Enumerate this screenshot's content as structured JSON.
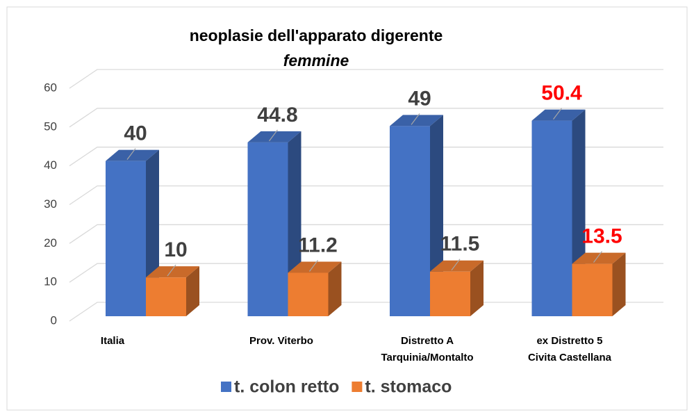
{
  "chart_data": {
    "type": "bar3d",
    "title": "neoplasie dell'apparato digerente",
    "subtitle": "femmine",
    "categories": [
      [
        "Italia"
      ],
      [
        "Prov. Viterbo"
      ],
      [
        "Distretto A",
        "Tarquinia/Montalto"
      ],
      [
        "ex Distretto 5",
        "Civita Castellana"
      ]
    ],
    "series": [
      {
        "name": "t. colon retto",
        "color": "#4472c4",
        "values": [
          40,
          44.8,
          49,
          50.4
        ]
      },
      {
        "name": "t. stomaco",
        "color": "#ed7d31",
        "values": [
          10,
          11.2,
          11.5,
          13.5
        ]
      }
    ],
    "label_colors": [
      "#404040",
      "#404040",
      "#404040",
      "#ff0000"
    ],
    "ylim": [
      0,
      60
    ],
    "yticks": [
      0,
      10,
      20,
      30,
      40,
      50,
      60
    ],
    "grid": true,
    "legend": "bottom"
  }
}
